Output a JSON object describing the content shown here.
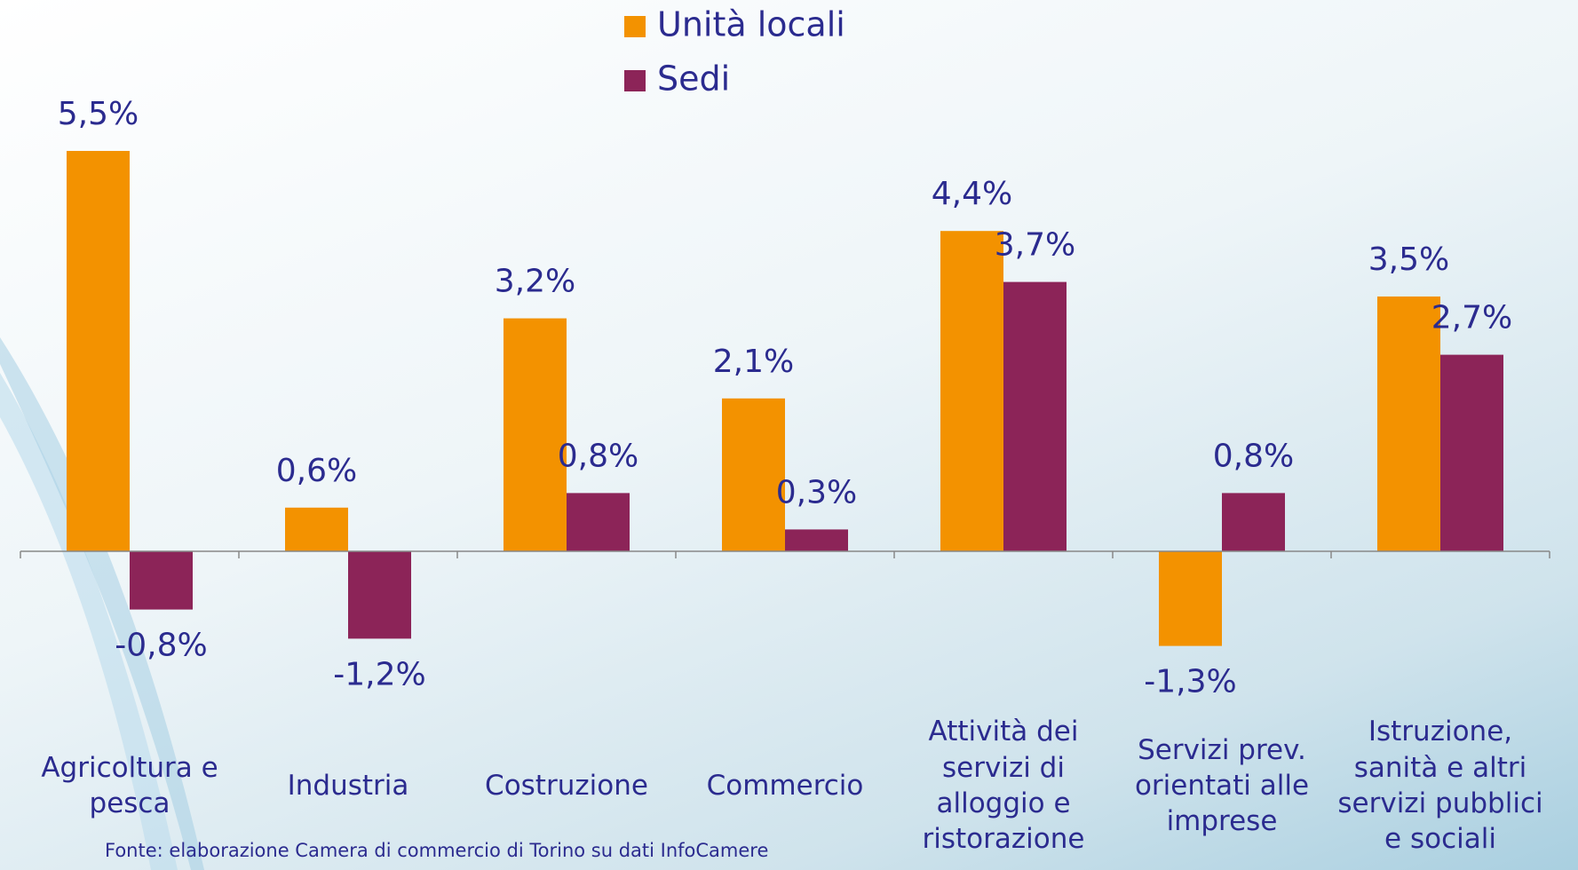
{
  "chart_data": {
    "type": "bar",
    "categories": [
      "Agricoltura e pesca",
      "Industria",
      "Costruzione",
      "Commercio",
      "Attività dei servizi di alloggio e ristorazione",
      "Servizi prev. orientati alle imprese",
      "Istruzione, sanità e altri servizi pubblici e sociali"
    ],
    "series": [
      {
        "name": "Unità locali",
        "color": "#f39200",
        "values": [
          5.5,
          0.6,
          3.2,
          2.1,
          4.4,
          -1.3,
          3.5
        ],
        "value_labels": [
          "5,5%",
          "0,6%",
          "3,2%",
          "2,1%",
          "4,4%",
          "-1,3%",
          "3,5%"
        ]
      },
      {
        "name": "Sedi",
        "color": "#8c2458",
        "values": [
          -0.8,
          -1.2,
          0.8,
          0.3,
          3.7,
          0.8,
          2.7
        ],
        "value_labels": [
          "-0,8%",
          "-1,2%",
          "0,8%",
          "0,3%",
          "3,7%",
          "0,8%",
          "2,7%"
        ]
      }
    ],
    "ylim": [
      -2,
      6
    ],
    "note": "Fonte: elaborazione Camera di commercio di Torino su dati InfoCamere"
  }
}
